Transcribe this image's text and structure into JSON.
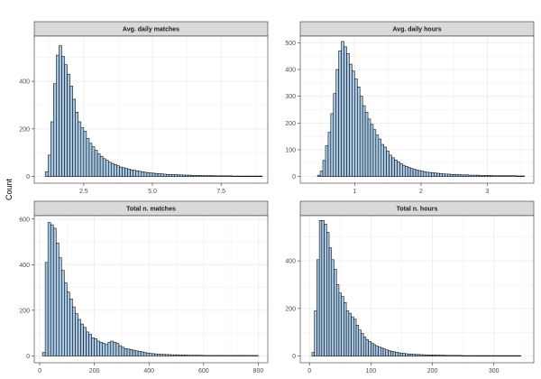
{
  "y_axis_label": "Count",
  "colors": {
    "bar_fill": "#a6c8e6",
    "bar_stroke": "#000000",
    "strip_bg": "#d9d9d9",
    "grid": "#ebebeb"
  },
  "chart_data": [
    {
      "type": "bar",
      "title": "Avg. daily matches",
      "xlabel": "",
      "ylabel": "Count",
      "xlim": [
        0.7,
        9.2
      ],
      "ylim": [
        -28,
        590
      ],
      "x_ticks": [
        2.5,
        5.0,
        7.5
      ],
      "x_tick_labels": [
        "2.5",
        "5.0",
        "7.5"
      ],
      "y_ticks": [
        0,
        200,
        400
      ],
      "y_tick_labels": [
        "0",
        "200",
        "400"
      ],
      "bin_start": 1.1,
      "bin_width": 0.1,
      "values": [
        20,
        90,
        230,
        390,
        510,
        550,
        505,
        470,
        430,
        380,
        325,
        270,
        230,
        205,
        190,
        160,
        140,
        125,
        110,
        95,
        85,
        75,
        68,
        60,
        55,
        50,
        45,
        40,
        37,
        34,
        31,
        28,
        26,
        24,
        22,
        20,
        18,
        16,
        15,
        14,
        13,
        12,
        11,
        10,
        9,
        9,
        8,
        8,
        7,
        7,
        6,
        6,
        6,
        5,
        5,
        5,
        4,
        4,
        4,
        4,
        4,
        3,
        3,
        3,
        3,
        3,
        3,
        3,
        2,
        2,
        2,
        2,
        2,
        2,
        2,
        2,
        2,
        2,
        2
      ]
    },
    {
      "type": "bar",
      "title": "Avg. daily hours",
      "xlabel": "",
      "ylabel": "Count",
      "xlim": [
        0.18,
        3.7
      ],
      "ylim": [
        -25,
        525
      ],
      "x_ticks": [
        1,
        2,
        3
      ],
      "x_tick_labels": [
        "1",
        "2",
        "3"
      ],
      "y_ticks": [
        0,
        100,
        200,
        300,
        400,
        500
      ],
      "y_tick_labels": [
        "0",
        "100",
        "200",
        "300",
        "400",
        "500"
      ],
      "bin_start": 0.44,
      "bin_width": 0.04,
      "values": [
        5,
        20,
        60,
        115,
        165,
        235,
        310,
        400,
        470,
        505,
        485,
        460,
        420,
        395,
        365,
        335,
        300,
        265,
        240,
        215,
        195,
        175,
        155,
        140,
        120,
        110,
        95,
        80,
        70,
        62,
        55,
        48,
        42,
        38,
        34,
        30,
        27,
        24,
        22,
        20,
        18,
        16,
        15,
        14,
        13,
        12,
        11,
        10,
        9,
        9,
        8,
        8,
        7,
        7,
        6,
        6,
        6,
        5,
        5,
        5,
        5,
        4,
        4,
        4,
        4,
        4,
        3,
        3,
        3,
        3,
        3,
        3,
        3,
        3,
        3,
        2,
        2,
        2
      ]
    },
    {
      "type": "bar",
      "title": "Total n. matches",
      "xlabel": "",
      "ylabel": "Count",
      "xlim": [
        -20,
        835
      ],
      "ylim": [
        -30,
        615
      ],
      "x_ticks": [
        0,
        200,
        400,
        600,
        800
      ],
      "x_tick_labels": [
        "0",
        "200",
        "400",
        "600",
        "800"
      ],
      "y_ticks": [
        0,
        200,
        400,
        600
      ],
      "y_tick_labels": [
        "0",
        "200",
        "400",
        "600"
      ],
      "bin_start": 10,
      "bin_width": 10,
      "values": [
        15,
        410,
        585,
        575,
        560,
        495,
        430,
        375,
        320,
        280,
        250,
        215,
        185,
        160,
        140,
        125,
        105,
        95,
        80,
        75,
        65,
        60,
        55,
        50,
        60,
        65,
        60,
        55,
        45,
        38,
        32,
        30,
        28,
        25,
        22,
        20,
        18,
        15,
        13,
        11,
        10,
        9,
        8,
        7,
        7,
        6,
        6,
        5,
        5,
        5,
        4,
        4,
        4,
        3,
        3,
        3,
        3,
        3,
        3,
        2,
        2,
        2,
        2,
        2,
        2,
        2,
        2,
        2,
        2,
        2,
        2,
        2,
        2,
        2,
        2,
        2,
        2,
        2,
        2
      ]
    },
    {
      "type": "bar",
      "title": "Total n. hours",
      "xlabel": "",
      "ylabel": "Count",
      "xlim": [
        -15,
        365
      ],
      "ylim": [
        -28,
        590
      ],
      "x_ticks": [
        0,
        100,
        200,
        300
      ],
      "x_tick_labels": [
        "0",
        "100",
        "200",
        "300"
      ],
      "y_ticks": [
        0,
        200,
        400
      ],
      "y_tick_labels": [
        "0",
        "200",
        "400"
      ],
      "bin_start": 4,
      "bin_width": 4,
      "values": [
        15,
        190,
        405,
        570,
        570,
        555,
        520,
        455,
        405,
        365,
        300,
        265,
        250,
        225,
        190,
        180,
        165,
        155,
        130,
        110,
        95,
        80,
        70,
        62,
        55,
        48,
        42,
        38,
        34,
        30,
        26,
        23,
        20,
        18,
        16,
        14,
        12,
        11,
        10,
        9,
        9,
        8,
        7,
        7,
        6,
        6,
        5,
        5,
        5,
        5,
        4,
        4,
        4,
        4,
        3,
        3,
        3,
        3,
        3,
        3,
        3,
        2,
        2,
        2,
        2,
        2,
        2,
        2,
        2,
        2,
        2,
        2,
        2,
        2,
        2,
        2,
        2,
        2,
        2,
        2,
        2,
        2,
        2,
        2,
        2
      ]
    }
  ]
}
